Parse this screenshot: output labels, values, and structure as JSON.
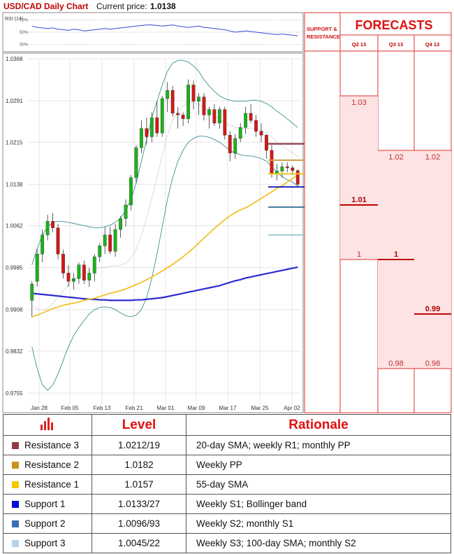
{
  "header": {
    "title": "USD/CAD Daily Chart",
    "price_label": "Current price:",
    "price_value": "1.0138"
  },
  "rsi_panel": {
    "label": "RSI (14)",
    "ticks": [
      "70%",
      "50%",
      "30%"
    ]
  },
  "chart_data": {
    "type": "candlestick",
    "title": "USD/CAD Daily Chart",
    "y_ticks": [
      "1.0368",
      "1.0291",
      "1.0215",
      "1.0138",
      "1.0062",
      "0.9985",
      "0.9908",
      "0.9832",
      "0.9755"
    ],
    "ylim": [
      0.9755,
      1.0368
    ],
    "x_ticks": [
      "Jan 28",
      "Feb 05",
      "Feb 13",
      "Feb 21",
      "Mar 01",
      "Mar 09",
      "Mar 17",
      "Mar 25",
      "Apr 02"
    ],
    "grid": true,
    "candles": [
      {
        "o": 0.9925,
        "h": 0.996,
        "l": 0.9895,
        "c": 0.9955
      },
      {
        "o": 0.996,
        "h": 1.002,
        "l": 0.995,
        "c": 1.001
      },
      {
        "o": 1.001,
        "h": 1.0055,
        "l": 0.9995,
        "c": 1.0045
      },
      {
        "o": 1.0045,
        "h": 1.0082,
        "l": 1.0035,
        "c": 1.007
      },
      {
        "o": 1.007,
        "h": 1.0085,
        "l": 1.005,
        "c": 1.0058
      },
      {
        "o": 1.0058,
        "h": 1.0065,
        "l": 1.0,
        "c": 1.001
      },
      {
        "o": 1.001,
        "h": 1.0018,
        "l": 0.9965,
        "c": 0.9975
      },
      {
        "o": 0.9975,
        "h": 0.999,
        "l": 0.995,
        "c": 0.996
      },
      {
        "o": 0.996,
        "h": 0.9975,
        "l": 0.9945,
        "c": 0.9965
      },
      {
        "o": 0.9965,
        "h": 0.9995,
        "l": 0.9955,
        "c": 0.999
      },
      {
        "o": 0.999,
        "h": 0.9998,
        "l": 0.9955,
        "c": 0.9962
      },
      {
        "o": 0.9962,
        "h": 0.9985,
        "l": 0.995,
        "c": 0.9975
      },
      {
        "o": 0.9975,
        "h": 1.001,
        "l": 0.996,
        "c": 1.0005
      },
      {
        "o": 1.0005,
        "h": 1.003,
        "l": 0.9995,
        "c": 1.0025
      },
      {
        "o": 1.0025,
        "h": 1.006,
        "l": 1.001,
        "c": 1.0045
      },
      {
        "o": 1.0045,
        "h": 1.006,
        "l": 1.001,
        "c": 1.0015
      },
      {
        "o": 1.0015,
        "h": 1.0065,
        "l": 1.0005,
        "c": 1.0055
      },
      {
        "o": 1.0055,
        "h": 1.008,
        "l": 1.004,
        "c": 1.0075
      },
      {
        "o": 1.0075,
        "h": 1.011,
        "l": 1.006,
        "c": 1.01
      },
      {
        "o": 1.01,
        "h": 1.0155,
        "l": 1.009,
        "c": 1.015
      },
      {
        "o": 1.015,
        "h": 1.021,
        "l": 1.014,
        "c": 1.0205
      },
      {
        "o": 1.0205,
        "h": 1.0255,
        "l": 1.0195,
        "c": 1.024
      },
      {
        "o": 1.024,
        "h": 1.026,
        "l": 1.021,
        "c": 1.0225
      },
      {
        "o": 1.0225,
        "h": 1.027,
        "l": 1.0215,
        "c": 1.026
      },
      {
        "o": 1.026,
        "h": 1.029,
        "l": 1.0225,
        "c": 1.0232
      },
      {
        "o": 1.0232,
        "h": 1.03,
        "l": 1.0225,
        "c": 1.0295
      },
      {
        "o": 1.0295,
        "h": 1.0325,
        "l": 1.027,
        "c": 1.031
      },
      {
        "o": 1.031,
        "h": 1.0318,
        "l": 1.0262,
        "c": 1.0268
      },
      {
        "o": 1.0268,
        "h": 1.028,
        "l": 1.024,
        "c": 1.0265
      },
      {
        "o": 1.0265,
        "h": 1.027,
        "l": 1.0245,
        "c": 1.0258
      },
      {
        "o": 1.0258,
        "h": 1.033,
        "l": 1.025,
        "c": 1.032
      },
      {
        "o": 1.032,
        "h": 1.0328,
        "l": 1.0275,
        "c": 1.029
      },
      {
        "o": 1.029,
        "h": 1.0305,
        "l": 1.0265,
        "c": 1.0298
      },
      {
        "o": 1.0298,
        "h": 1.0305,
        "l": 1.0255,
        "c": 1.0265
      },
      {
        "o": 1.0265,
        "h": 1.028,
        "l": 1.024,
        "c": 1.0275
      },
      {
        "o": 1.0275,
        "h": 1.0285,
        "l": 1.0245,
        "c": 1.025
      },
      {
        "o": 1.025,
        "h": 1.028,
        "l": 1.024,
        "c": 1.0275
      },
      {
        "o": 1.0275,
        "h": 1.028,
        "l": 1.022,
        "c": 1.0228
      },
      {
        "o": 1.0228,
        "h": 1.0235,
        "l": 1.018,
        "c": 1.0195
      },
      {
        "o": 1.0195,
        "h": 1.023,
        "l": 1.0185,
        "c": 1.0222
      },
      {
        "o": 1.0222,
        "h": 1.025,
        "l": 1.0215,
        "c": 1.0242
      },
      {
        "o": 1.0242,
        "h": 1.028,
        "l": 1.023,
        "c": 1.0268
      },
      {
        "o": 1.0268,
        "h": 1.0285,
        "l": 1.025,
        "c": 1.0255
      },
      {
        "o": 1.0255,
        "h": 1.0265,
        "l": 1.0225,
        "c": 1.0235
      },
      {
        "o": 1.0235,
        "h": 1.025,
        "l": 1.0215,
        "c": 1.0228
      },
      {
        "o": 1.0228,
        "h": 1.023,
        "l": 1.0185,
        "c": 1.02
      },
      {
        "o": 1.02,
        "h": 1.021,
        "l": 1.015,
        "c": 1.0158
      },
      {
        "o": 1.0158,
        "h": 1.0175,
        "l": 1.0145,
        "c": 1.0162
      },
      {
        "o": 1.0162,
        "h": 1.0178,
        "l": 1.015,
        "c": 1.017
      },
      {
        "o": 1.017,
        "h": 1.0178,
        "l": 1.016,
        "c": 1.0168
      },
      {
        "o": 1.0168,
        "h": 1.0172,
        "l": 1.0155,
        "c": 1.0163
      },
      {
        "o": 1.0163,
        "h": 1.0165,
        "l": 1.0132,
        "c": 1.0138
      }
    ],
    "sma55": [
      0.9895,
      0.9898,
      0.9902,
      0.9906,
      0.991,
      0.9913,
      0.9916,
      0.9918,
      0.992,
      0.9922,
      0.9925,
      0.9927,
      0.9929,
      0.9932,
      0.9935,
      0.9938,
      0.994,
      0.9943,
      0.9946,
      0.995,
      0.9954,
      0.9958,
      0.9963,
      0.9968,
      0.9973,
      0.9979,
      0.9985,
      0.9991,
      0.9998,
      1.0005,
      1.0013,
      1.0021,
      1.003,
      1.0039,
      1.0048,
      1.0057,
      1.0065,
      1.0073,
      1.008,
      1.0086,
      1.0091,
      1.0095,
      1.01,
      1.0106,
      1.0112,
      1.0118,
      1.0124,
      1.013,
      1.0135,
      1.0142,
      1.0148,
      1.0155
    ],
    "sma100": [
      0.9938,
      0.9937,
      0.9936,
      0.9935,
      0.9934,
      0.9933,
      0.9932,
      0.9931,
      0.993,
      0.9929,
      0.9928,
      0.9927,
      0.9927,
      0.9926,
      0.9926,
      0.9925,
      0.9925,
      0.9925,
      0.9925,
      0.9925,
      0.9926,
      0.9926,
      0.9927,
      0.9928,
      0.9929,
      0.993,
      0.9932,
      0.9934,
      0.9936,
      0.9938,
      0.994,
      0.9942,
      0.9944,
      0.9946,
      0.9948,
      0.995,
      0.9952,
      0.9955,
      0.9958,
      0.9961,
      0.9963,
      0.9966,
      0.9968,
      0.997,
      0.9972,
      0.9974,
      0.9976,
      0.9978,
      0.998,
      0.9982,
      0.9984,
      0.9986
    ],
    "boll_upper": [
      0.999,
      1.002,
      1.0045,
      1.006,
      1.0068,
      1.007,
      1.007,
      1.0068,
      1.0066,
      1.0064,
      1.0062,
      1.006,
      1.0058,
      1.0058,
      1.006,
      1.0063,
      1.0068,
      1.0076,
      1.009,
      1.011,
      1.014,
      1.018,
      1.022,
      1.026,
      1.029,
      1.032,
      1.0345,
      1.036,
      1.0365,
      1.0365,
      1.0362,
      1.0355,
      1.0345,
      1.033,
      1.0318,
      1.0308,
      1.03,
      1.0295,
      1.0292,
      1.029,
      1.029,
      1.029,
      1.0292,
      1.0292,
      1.029,
      1.0286,
      1.028,
      1.0272,
      1.0265,
      1.0258,
      1.025,
      1.0242
    ],
    "boll_lower": [
      0.984,
      0.98,
      0.977,
      0.976,
      0.977,
      0.979,
      0.9815,
      0.984,
      0.986,
      0.9875,
      0.9888,
      0.99,
      0.9908,
      0.9912,
      0.9913,
      0.9912,
      0.9908,
      0.9902,
      0.9897,
      0.9895,
      0.9898,
      0.9908,
      0.993,
      0.9965,
      1.001,
      1.006,
      1.011,
      1.015,
      1.018,
      1.02,
      1.0215,
      1.0222,
      1.0226,
      1.0226,
      1.0224,
      1.022,
      1.0215,
      1.0208,
      1.02,
      1.0195,
      1.0192,
      1.019,
      1.019,
      1.0188,
      1.0185,
      1.018,
      1.017,
      1.016,
      1.0152,
      1.0146,
      1.0142,
      1.0135
    ],
    "boll_mid": [
      0.9915,
      0.991,
      0.9907,
      0.991,
      0.9919,
      0.993,
      0.9942,
      0.9954,
      0.9963,
      0.997,
      0.9975,
      0.998,
      0.9983,
      0.9985,
      0.9986,
      0.9988,
      0.9988,
      0.9989,
      0.9993,
      1.0002,
      1.0019,
      1.0044,
      1.0075,
      1.0112,
      1.015,
      1.019,
      1.0228,
      1.0255,
      1.0272,
      1.0282,
      1.0288,
      1.0288,
      1.0285,
      1.0278,
      1.0271,
      1.0264,
      1.0257,
      1.0251,
      1.0246,
      1.0242,
      1.0241,
      1.024,
      1.0241,
      1.024,
      1.0237,
      1.0233,
      1.0225,
      1.0216,
      1.0208,
      1.0202,
      1.0196,
      1.0188
    ],
    "levels": [
      {
        "name": "Resistance 3",
        "value": 1.0212,
        "label": "1.0212",
        "color": "#7f2838"
      },
      {
        "name": "Resistance 2",
        "value": 1.0182,
        "label": "1.0182",
        "color": "#d2a04c"
      },
      {
        "name": "Resistance 1",
        "value": 1.0157,
        "label": "1.0157",
        "color": "#f0c419"
      },
      {
        "name": "Support 1",
        "value": 1.0133,
        "label": "1.0133",
        "color": "#1b24b8"
      },
      {
        "name": "Support 2",
        "value": 1.0096,
        "label": "1.0096",
        "color": "#41799c"
      },
      {
        "name": "Support 3",
        "value": 1.0045,
        "label": "1.0045",
        "color": "#9ad0d2"
      }
    ],
    "rsi": [
      60,
      58,
      57,
      56,
      57,
      55,
      54,
      53,
      55,
      54,
      52,
      53,
      54,
      55,
      56,
      55,
      56,
      57,
      58,
      59,
      60,
      61,
      62,
      62,
      61,
      60,
      61,
      62,
      60,
      59,
      58,
      59,
      60,
      58,
      57,
      56,
      55,
      54,
      52,
      50,
      51,
      52,
      51,
      50,
      49,
      48,
      47,
      46,
      47,
      46,
      45,
      44
    ]
  },
  "side": {
    "sr_title": "SUPPORT & RESISTANCE",
    "forecast_title": "FORECASTS",
    "quarters": [
      "Q2 13",
      "Q3 13",
      "Q4 13"
    ],
    "ranges": [
      {
        "quarter": "Q2 13",
        "high": "1.03",
        "mid": "1.01",
        "low": "1"
      },
      {
        "quarter": "Q3 13",
        "high": "1.02",
        "mid": "1",
        "low": "0.98"
      },
      {
        "quarter": "Q4 13",
        "high": "1.02",
        "mid": "0.99",
        "low": "0.98"
      }
    ]
  },
  "table": {
    "headers": [
      "Level",
      "Rationale"
    ],
    "rows": [
      {
        "name": "Resistance 3",
        "level": "1.0212/19",
        "rationale": "20-day SMA; weekly R1; monthly PP",
        "color": "#8e3a44"
      },
      {
        "name": "Resistance 2",
        "level": "1.0182",
        "rationale": "Weekly PP",
        "color": "#c7951e"
      },
      {
        "name": "Resistance 1",
        "level": "1.0157",
        "rationale": "55-day SMA",
        "color": "#f5c900"
      },
      {
        "name": "Support 1",
        "level": "1.0133/27",
        "rationale": "Weekly S1; Bollinger band",
        "color": "#0a0ad8"
      },
      {
        "name": "Support 2",
        "level": "1.0096/93",
        "rationale": "Weekly S2; monthly S1",
        "color": "#3a70b4"
      },
      {
        "name": "Support 3",
        "level": "1.0045/22",
        "rationale": "Weekly S3; 100-day SMA; monthly S2",
        "color": "#b8d0e6"
      }
    ]
  }
}
